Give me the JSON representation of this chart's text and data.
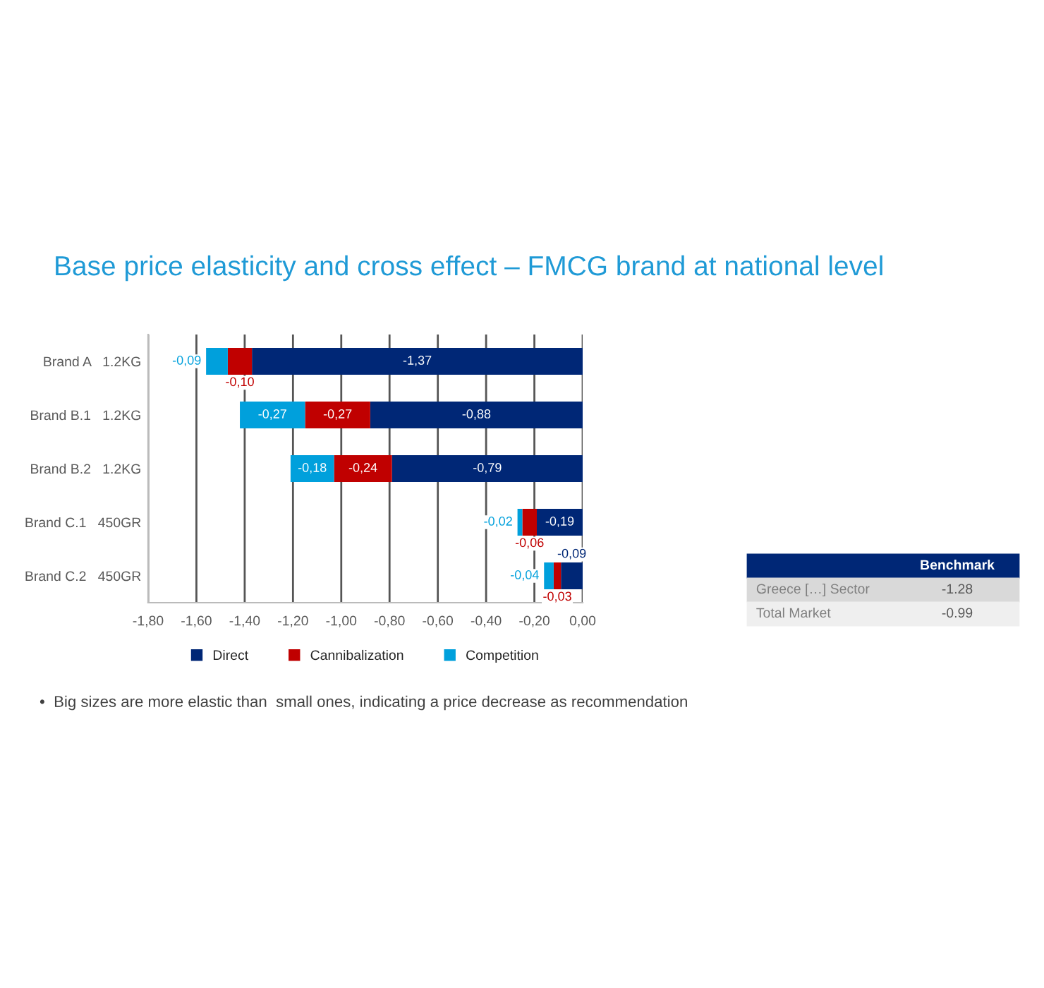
{
  "chart_data": {
    "type": "bar",
    "orientation": "horizontal",
    "stacked": true,
    "title": "Base price elasticity and cross effect – FMCG brand at national level",
    "categories": [
      "Brand A   1.2KG",
      "Brand B.1   1.2KG",
      "Brand B.2   1.2KG",
      "Brand C.1   450GR",
      "Brand C.2   450GR"
    ],
    "series": [
      {
        "name": "Direct",
        "color": "#002776",
        "values": [
          -1.37,
          -0.88,
          -0.79,
          -0.19,
          -0.09
        ],
        "value_labels": [
          "-1,37",
          "-0,88",
          "-0,79",
          "-0,19",
          "-0,09"
        ]
      },
      {
        "name": "Cannibalization",
        "color": "#c00000",
        "values": [
          -0.1,
          -0.27,
          -0.24,
          -0.06,
          -0.03
        ],
        "value_labels": [
          "-0,10",
          "-0,27",
          "-0,24",
          "-0,06",
          "-0,03"
        ]
      },
      {
        "name": "Competition",
        "color": "#00a0dc",
        "values": [
          -0.09,
          -0.27,
          -0.18,
          -0.02,
          -0.04
        ],
        "value_labels": [
          "-0,09",
          "-0,27",
          "-0,18",
          "-0,02",
          "-0,04"
        ]
      }
    ],
    "xlim": [
      -1.8,
      0.0
    ],
    "xticks": [
      {
        "value": -1.8,
        "label": "-1,80"
      },
      {
        "value": -1.6,
        "label": "-1,60"
      },
      {
        "value": -1.4,
        "label": "-1,40"
      },
      {
        "value": -1.2,
        "label": "-1,20"
      },
      {
        "value": -1.0,
        "label": "-1,00"
      },
      {
        "value": -0.8,
        "label": "-0,80"
      },
      {
        "value": -0.6,
        "label": "-0,60"
      },
      {
        "value": -0.4,
        "label": "-0,40"
      },
      {
        "value": -0.2,
        "label": "-0,20"
      },
      {
        "value": 0.0,
        "label": "0,00"
      }
    ],
    "grid": "x",
    "legend": "bottom",
    "annotations": [
      "Benchmark",
      "Greece […] Sector",
      "-1.28",
      "Total Market",
      "-0.99",
      "•  Big sizes are more elastic than  small ones, indicating a price decrease as recommendation"
    ]
  }
}
